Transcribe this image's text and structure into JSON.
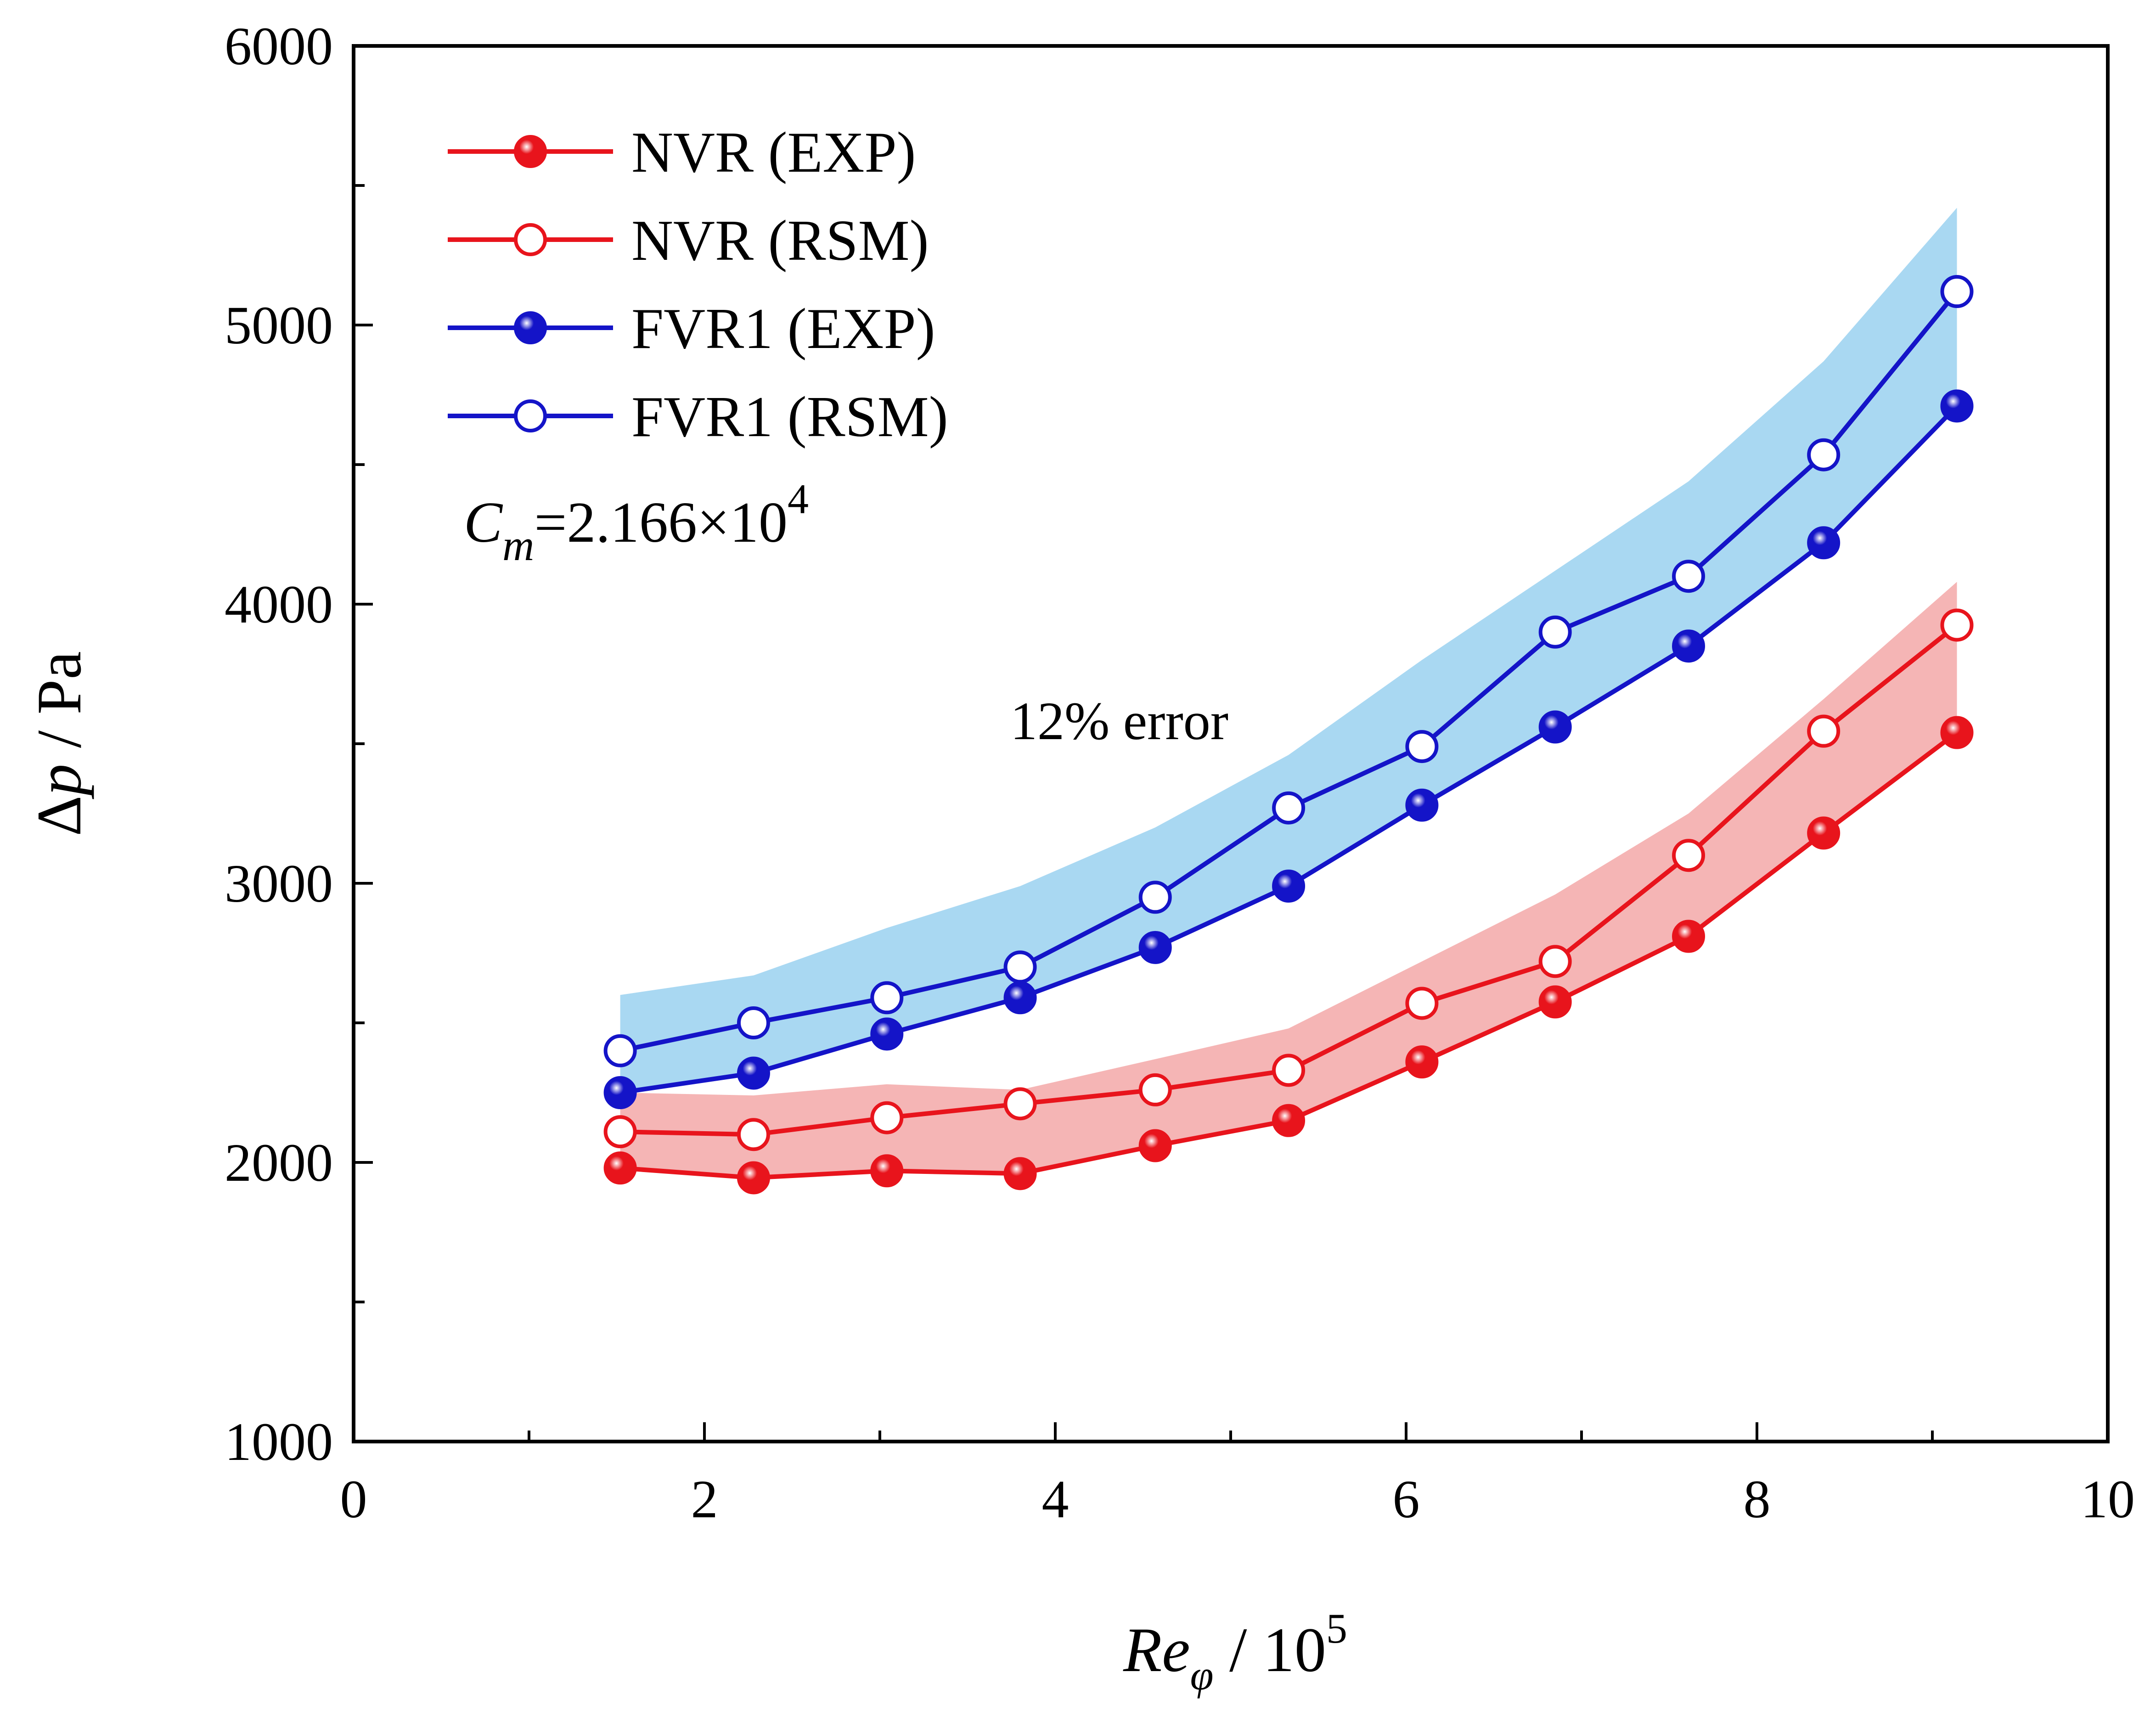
{
  "chart_data": {
    "type": "line",
    "title": "",
    "xlabel": {
      "main": "Re",
      "sub": "φ",
      "rest": " / 10",
      "sup": "5"
    },
    "ylabel": {
      "delta": "Δ",
      "var": "p",
      "rest": " / Pa"
    },
    "xlim": [
      0,
      10
    ],
    "ylim": [
      1000,
      6000
    ],
    "xticks": [
      0,
      2,
      4,
      6,
      8,
      10
    ],
    "xtick_labels": [
      "0",
      "2",
      "4",
      "6",
      "8",
      "10"
    ],
    "yticks": [
      1000,
      2000,
      3000,
      4000,
      5000,
      6000
    ],
    "ytick_labels": [
      "1000",
      "2000",
      "3000",
      "4000",
      "5000",
      "6000"
    ],
    "x": [
      1.52,
      2.28,
      3.04,
      3.8,
      4.57,
      5.33,
      6.09,
      6.85,
      7.61,
      8.38,
      9.14
    ],
    "series": [
      {
        "name": "NVR (EXP)",
        "color": "#e8141c",
        "marker": "filled",
        "values": [
          1980,
          1945,
          1970,
          1960,
          2060,
          2150,
          2360,
          2575,
          2810,
          3180,
          3540
        ]
      },
      {
        "name": "NVR (RSM)",
        "color": "#e8141c",
        "marker": "open",
        "values": [
          2110,
          2100,
          2160,
          2210,
          2260,
          2330,
          2570,
          2720,
          3100,
          3545,
          3925
        ]
      },
      {
        "name": "FVR1 (EXP)",
        "color": "#1414c8",
        "marker": "filled",
        "values": [
          2250,
          2320,
          2460,
          2590,
          2770,
          2990,
          3280,
          3560,
          3850,
          4220,
          4710
        ]
      },
      {
        "name": "FVR1 (RSM)",
        "color": "#1414c8",
        "marker": "open",
        "values": [
          2400,
          2500,
          2590,
          2700,
          2950,
          3270,
          3490,
          3900,
          4100,
          4535,
          5120
        ]
      }
    ],
    "error_bands": [
      {
        "series": "NVR",
        "color": "#f5b5b5",
        "lower": [
          1980,
          1945,
          1970,
          1960,
          2060,
          2150,
          2360,
          2575,
          2810,
          3180,
          3540
        ],
        "upper": [
          2250,
          2240,
          2280,
          2260,
          2370,
          2480,
          2720,
          2960,
          3250,
          3660,
          4080
        ]
      },
      {
        "series": "FVR1",
        "color": "#a9d8f2",
        "lower": [
          2250,
          2320,
          2460,
          2590,
          2770,
          2990,
          3280,
          3560,
          3850,
          4220,
          4710
        ],
        "upper": [
          2600,
          2670,
          2840,
          2990,
          3200,
          3460,
          3800,
          4120,
          4440,
          4870,
          5420
        ]
      }
    ],
    "legend_position": "top-left",
    "annotations": {
      "condition": {
        "main": "C",
        "sub": "m",
        "rest": "=2.166×10",
        "sup": "4"
      },
      "error_label": "12% error"
    }
  }
}
